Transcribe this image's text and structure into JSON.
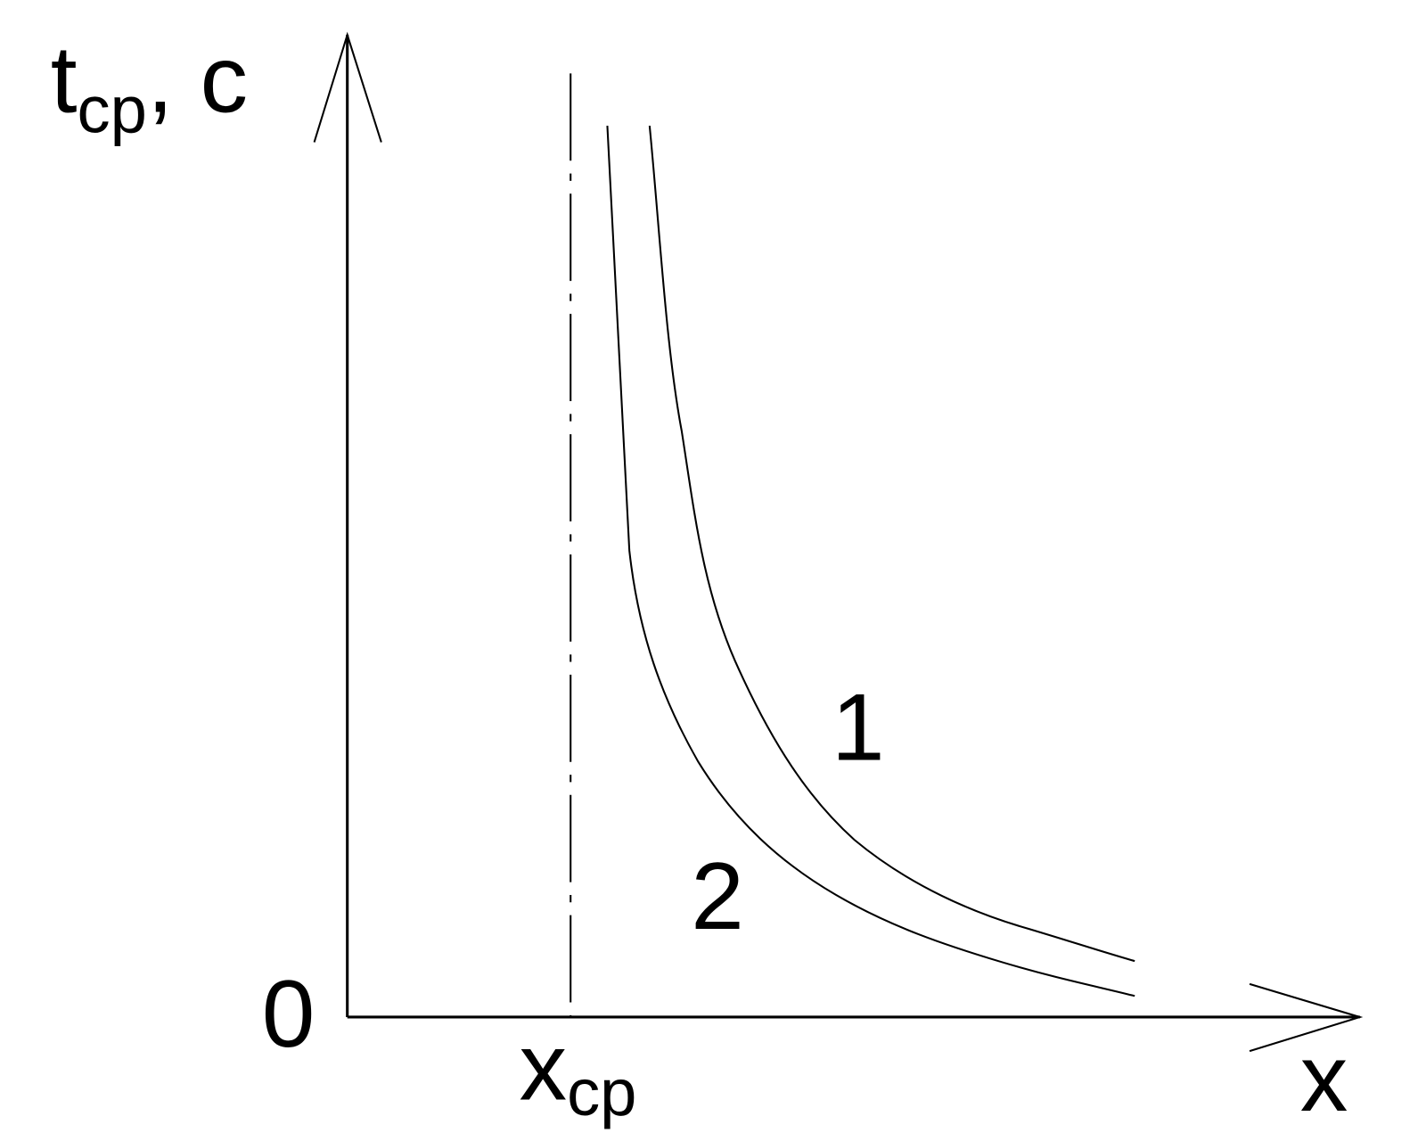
{
  "y_axis": {
    "label": "t",
    "subscript": "cp",
    "suffix": ", c"
  },
  "origin": "0",
  "x_marker": {
    "label": "x",
    "subscript": "cp"
  },
  "x_axis": {
    "label": "x"
  },
  "curves": [
    {
      "label": "1"
    },
    {
      "label": "2"
    }
  ]
}
